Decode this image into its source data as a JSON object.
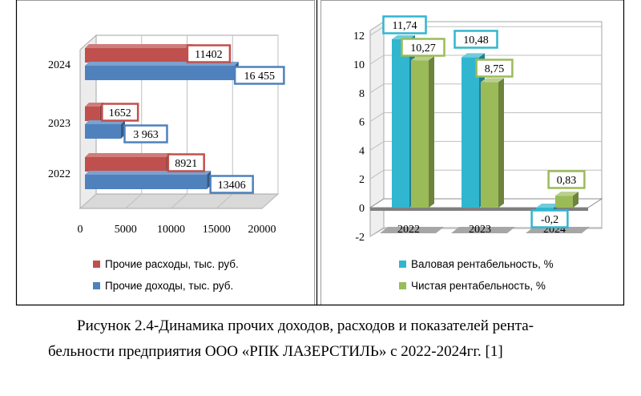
{
  "chart_data": [
    {
      "type": "bar",
      "orientation": "horizontal",
      "categories": [
        "2022",
        "2023",
        "2024"
      ],
      "series": [
        {
          "name": "Прочие расходы, тыс. руб.",
          "values": [
            8921,
            1652,
            11402
          ],
          "labels": [
            "8921",
            "1652",
            "11402"
          ],
          "color": "#c0504d"
        },
        {
          "name": "Прочие доходы, тыс. руб.",
          "values": [
            13406,
            3963,
            16455
          ],
          "labels": [
            "13406",
            "3 963",
            "16 455"
          ],
          "color": "#4f81bd"
        }
      ],
      "x_ticks": [
        "0",
        "5000",
        "10000",
        "15000",
        "20000"
      ],
      "xlim": [
        0,
        20000
      ],
      "legend": "bottom",
      "grid": true
    },
    {
      "type": "bar",
      "categories": [
        "2022",
        "2023",
        "2024"
      ],
      "series": [
        {
          "name": "Валовая рентабельность, %",
          "values": [
            11.74,
            10.48,
            -0.2
          ],
          "labels": [
            "11,74",
            "10,48",
            "-0,2"
          ],
          "color": "#31b6cf"
        },
        {
          "name": "Чистая рентабельность, %",
          "values": [
            10.27,
            8.75,
            0.83
          ],
          "labels": [
            "10,27",
            "8,75",
            "0,83"
          ],
          "color": "#9bbb59"
        }
      ],
      "y_ticks": [
        "-2",
        "0",
        "2",
        "4",
        "6",
        "8",
        "10",
        "12"
      ],
      "ylim": [
        -2,
        12
      ],
      "legend": "bottom",
      "grid": true
    }
  ],
  "caption": {
    "line1": "Рисунок 2.4-Динамика прочих доходов, расходов и показателей рента-",
    "line2": "бельности предприятия ООО «РПК ЛАЗЕРСТИЛЬ» с 2022-2024гг. [1]"
  }
}
